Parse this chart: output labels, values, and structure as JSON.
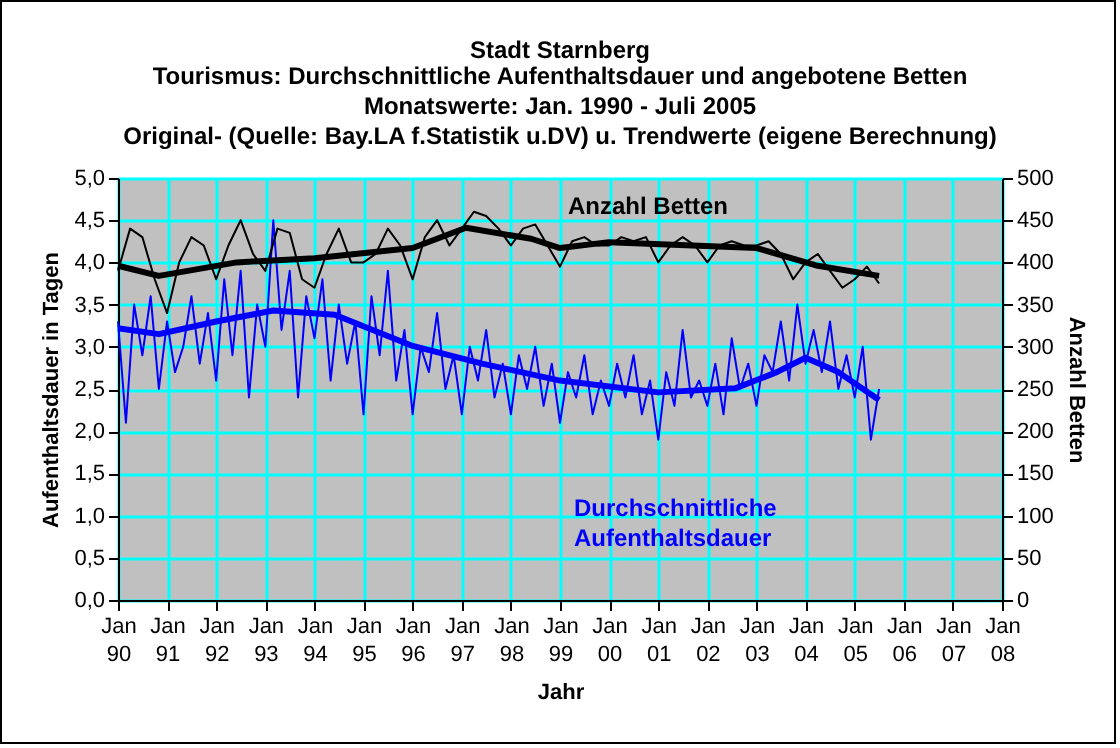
{
  "chart_data": {
    "type": "line",
    "title": "Stadt Starnberg",
    "subtitle": "Tourismus: Durchschnittliche Aufenthaltsdauer und angebotene Betten\nMonatswerte: Jan. 1990 - Juli 2005\nOriginal- (Quelle: Bay.LA f.Statistik u.DV) u. Trendwerte (eigene Berechnung)",
    "xlabel": "Jahr",
    "ylabel": "Aufenthaltsdauer in Tagen",
    "y2label": "Anzahl Betten",
    "xlim": [
      "1990-01",
      "2008-01"
    ],
    "xticks": [
      {
        "value": "1990-01",
        "label": "Jan 90"
      },
      {
        "value": "1991-01",
        "label": "Jan 91"
      },
      {
        "value": "1992-01",
        "label": "Jan 92"
      },
      {
        "value": "1993-01",
        "label": "Jan 93"
      },
      {
        "value": "1994-01",
        "label": "Jan 94"
      },
      {
        "value": "1995-01",
        "label": "Jan 95"
      },
      {
        "value": "1996-01",
        "label": "Jan 96"
      },
      {
        "value": "1997-01",
        "label": "Jan 97"
      },
      {
        "value": "1998-01",
        "label": "Jan 98"
      },
      {
        "value": "1999-01",
        "label": "Jan 99"
      },
      {
        "value": "2000-01",
        "label": "Jan 00"
      },
      {
        "value": "2001-01",
        "label": "Jan 01"
      },
      {
        "value": "2002-01",
        "label": "Jan 02"
      },
      {
        "value": "2003-01",
        "label": "Jan 03"
      },
      {
        "value": "2004-01",
        "label": "Jan 04"
      },
      {
        "value": "2005-01",
        "label": "Jan 05"
      },
      {
        "value": "2006-01",
        "label": "Jan 06"
      },
      {
        "value": "2007-01",
        "label": "Jan 07"
      },
      {
        "value": "2008-01",
        "label": "Jan 08"
      }
    ],
    "ylim": [
      0,
      5
    ],
    "yticks": [
      {
        "value": 0,
        "label": "0,0"
      },
      {
        "value": 0.5,
        "label": "0,5"
      },
      {
        "value": 1,
        "label": "1,0"
      },
      {
        "value": 1.5,
        "label": "1,5"
      },
      {
        "value": 2,
        "label": "2,0"
      },
      {
        "value": 2.5,
        "label": "2,5"
      },
      {
        "value": 3,
        "label": "3,0"
      },
      {
        "value": 3.5,
        "label": "3,5"
      },
      {
        "value": 4,
        "label": "4,0"
      },
      {
        "value": 4.5,
        "label": "4,5"
      },
      {
        "value": 5,
        "label": "5,0"
      }
    ],
    "y2lim": [
      0,
      500
    ],
    "y2ticks": [
      0,
      50,
      100,
      150,
      200,
      250,
      300,
      350,
      400,
      450,
      500
    ],
    "grid": true,
    "series": [
      {
        "name": "Durchschnittliche Aufenthaltsdauer",
        "color": "#0000ff",
        "x": [
          "1990-01",
          "1990-03",
          "1990-05",
          "1990-07",
          "1990-09",
          "1990-11",
          "1991-01",
          "1991-03",
          "1991-05",
          "1991-07",
          "1991-09",
          "1991-11",
          "1992-01",
          "1992-03",
          "1992-05",
          "1992-07",
          "1992-09",
          "1992-11",
          "1993-01",
          "1993-03",
          "1993-05",
          "1993-07",
          "1993-09",
          "1993-11",
          "1994-01",
          "1994-03",
          "1994-05",
          "1994-07",
          "1994-09",
          "1994-11",
          "1995-01",
          "1995-03",
          "1995-05",
          "1995-07",
          "1995-09",
          "1995-11",
          "1996-01",
          "1996-03",
          "1996-05",
          "1996-07",
          "1996-09",
          "1996-11",
          "1997-01",
          "1997-03",
          "1997-05",
          "1997-07",
          "1997-09",
          "1997-11",
          "1998-01",
          "1998-03",
          "1998-05",
          "1998-07",
          "1998-09",
          "1998-11",
          "1999-01",
          "1999-03",
          "1999-05",
          "1999-07",
          "1999-09",
          "1999-11",
          "2000-01",
          "2000-03",
          "2000-05",
          "2000-07",
          "2000-09",
          "2000-11",
          "2001-01",
          "2001-03",
          "2001-05",
          "2001-07",
          "2001-09",
          "2001-11",
          "2002-01",
          "2002-03",
          "2002-05",
          "2002-07",
          "2002-09",
          "2002-11",
          "2003-01",
          "2003-03",
          "2003-05",
          "2003-07",
          "2003-09",
          "2003-11",
          "2004-01",
          "2004-03",
          "2004-05",
          "2004-07",
          "2004-09",
          "2004-11",
          "2005-01",
          "2005-03",
          "2005-05",
          "2005-07"
        ],
        "values": [
          3.3,
          2.1,
          3.5,
          2.9,
          3.6,
          2.5,
          3.3,
          2.7,
          3.0,
          3.6,
          2.8,
          3.4,
          2.6,
          3.8,
          2.9,
          3.9,
          2.4,
          3.5,
          3.0,
          4.5,
          3.2,
          3.9,
          2.4,
          3.6,
          3.1,
          3.8,
          2.6,
          3.5,
          2.8,
          3.3,
          2.2,
          3.6,
          2.9,
          3.9,
          2.6,
          3.2,
          2.2,
          3.0,
          2.7,
          3.4,
          2.5,
          2.9,
          2.2,
          3.0,
          2.6,
          3.2,
          2.4,
          2.8,
          2.2,
          2.9,
          2.5,
          3.0,
          2.3,
          2.8,
          2.1,
          2.7,
          2.4,
          2.9,
          2.2,
          2.6,
          2.3,
          2.8,
          2.4,
          2.9,
          2.2,
          2.6,
          1.9,
          2.7,
          2.3,
          3.2,
          2.4,
          2.6,
          2.3,
          2.8,
          2.2,
          3.1,
          2.5,
          2.8,
          2.3,
          2.9,
          2.7,
          3.3,
          2.6,
          3.5,
          2.8,
          3.2,
          2.7,
          3.3,
          2.5,
          2.9,
          2.4,
          3.0,
          1.9,
          2.5
        ]
      },
      {
        "color": "#0000ff",
        "x": [
          "1990-01",
          "1990-11",
          "1992-01",
          "1993-03",
          "1994-06",
          "1996-01",
          "1997-06",
          "1999-01",
          "2001-01",
          "2002-08",
          "2003-06",
          "2004-01",
          "2004-09",
          "2005-07"
        ],
        "values": [
          3.22,
          3.15,
          3.3,
          3.43,
          3.38,
          3.01,
          2.8,
          2.6,
          2.46,
          2.51,
          2.7,
          2.87,
          2.7,
          2.37
        ]
      },
      {
        "name": "Anzahl Betten",
        "color": "#000000",
        "axis": "y2",
        "x": [
          "1990-01",
          "1990-04",
          "1990-07",
          "1990-10",
          "1991-01",
          "1991-04",
          "1991-07",
          "1991-10",
          "1992-01",
          "1992-04",
          "1992-07",
          "1992-10",
          "1993-01",
          "1993-04",
          "1993-07",
          "1993-10",
          "1994-01",
          "1994-04",
          "1994-07",
          "1994-10",
          "1995-01",
          "1995-04",
          "1995-07",
          "1995-10",
          "1996-01",
          "1996-04",
          "1996-07",
          "1996-10",
          "1997-01",
          "1997-04",
          "1997-07",
          "1997-10",
          "1998-01",
          "1998-04",
          "1998-07",
          "1998-10",
          "1999-01",
          "1999-04",
          "1999-07",
          "1999-10",
          "2000-01",
          "2000-04",
          "2000-07",
          "2000-10",
          "2001-01",
          "2001-04",
          "2001-07",
          "2001-10",
          "2002-01",
          "2002-04",
          "2002-07",
          "2002-10",
          "2003-01",
          "2003-04",
          "2003-07",
          "2003-10",
          "2004-01",
          "2004-04",
          "2004-07",
          "2004-10",
          "2005-01",
          "2005-04",
          "2005-07"
        ],
        "values": [
          390,
          440,
          430,
          380,
          340,
          400,
          430,
          420,
          380,
          420,
          450,
          410,
          390,
          440,
          435,
          380,
          370,
          410,
          440,
          400,
          400,
          410,
          440,
          420,
          380,
          430,
          450,
          420,
          440,
          460,
          455,
          440,
          420,
          440,
          445,
          420,
          395,
          425,
          430,
          420,
          420,
          430,
          425,
          430,
          400,
          420,
          430,
          420,
          400,
          420,
          425,
          420,
          420,
          425,
          410,
          380,
          400,
          410,
          390,
          370,
          380,
          395,
          375
        ]
      },
      {
        "color": "#000000",
        "axis": "y2",
        "x": [
          "1990-01",
          "1990-11",
          "1992-06",
          "1994-01",
          "1996-01",
          "1997-02",
          "1998-06",
          "1999-01",
          "2000-01",
          "2003-01",
          "2004-04",
          "2005-07"
        ],
        "values": [
          396,
          384,
          400,
          405,
          417,
          441,
          428,
          417,
          424,
          417,
          396,
          384
        ]
      }
    ]
  }
}
